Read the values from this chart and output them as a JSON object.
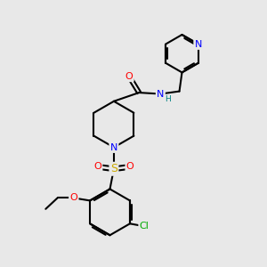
{
  "bg_color": "#e8e8e8",
  "bond_color": "#000000",
  "bond_width": 1.5,
  "atom_colors": {
    "N": "#0000ff",
    "O": "#ff0000",
    "S": "#ccaa00",
    "Cl": "#00aa00",
    "H": "#008080",
    "C": "#000000"
  },
  "font_size": 8.0
}
